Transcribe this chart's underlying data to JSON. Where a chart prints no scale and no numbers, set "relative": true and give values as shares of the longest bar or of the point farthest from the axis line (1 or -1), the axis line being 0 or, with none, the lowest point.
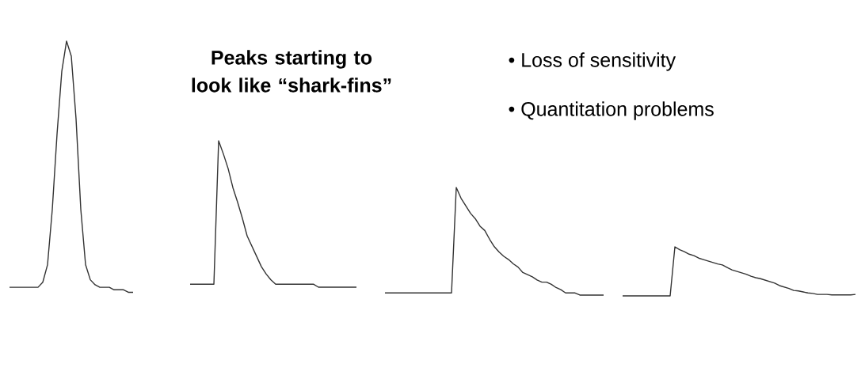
{
  "chart_data": [
    {
      "type": "line",
      "relative": true,
      "categories": [
        null,
        null,
        null,
        null,
        null,
        null,
        null,
        null,
        null,
        null,
        null,
        null,
        null,
        null,
        null,
        null,
        null,
        null,
        null,
        null,
        null,
        null,
        null,
        null,
        null,
        null,
        null
      ],
      "series": [
        {
          "color": "#333333",
          "values": [
            0.02,
            0.02,
            0.02,
            0.02,
            0.02,
            0.02,
            0.02,
            0.04,
            0.11,
            0.33,
            0.63,
            0.88,
            1.0,
            0.94,
            0.69,
            0.33,
            0.11,
            0.05,
            0.03,
            0.02,
            0.02,
            0.02,
            0.01,
            0.01,
            0.01,
            0,
            0
          ]
        }
      ]
    },
    {
      "type": "line",
      "relative": true,
      "title": "Peaks starting to look like “shark-fins”",
      "categories": [
        null,
        null,
        null,
        null,
        null,
        null,
        null,
        null,
        null,
        null,
        null,
        null,
        null,
        null,
        null,
        null,
        null,
        null,
        null,
        null,
        null,
        null,
        null,
        null,
        null,
        null,
        null,
        null,
        null,
        null,
        null,
        null,
        null,
        null,
        null,
        null
      ],
      "series": [
        {
          "color": "#333333",
          "values": [
            0.02,
            0.02,
            0.02,
            0.02,
            0.02,
            0.02,
            1.0,
            0.91,
            0.81,
            0.68,
            0.58,
            0.47,
            0.35,
            0.28,
            0.21,
            0.14,
            0.09,
            0.05,
            0.02,
            0.02,
            0.02,
            0.02,
            0.02,
            0.02,
            0.02,
            0.02,
            0.02,
            0,
            0,
            0,
            0,
            0,
            0,
            0,
            0,
            0
          ]
        }
      ]
    },
    {
      "type": "line",
      "relative": true,
      "annotations": [
        "• Loss of sensitivity",
        "• Quantitation problems"
      ],
      "categories": [
        null,
        null,
        null,
        null,
        null,
        null,
        null,
        null,
        null,
        null,
        null,
        null,
        null,
        null,
        null,
        null,
        null,
        null,
        null,
        null,
        null,
        null,
        null,
        null,
        null,
        null,
        null,
        null,
        null,
        null,
        null,
        null,
        null,
        null,
        null,
        null,
        null,
        null,
        null,
        null,
        null,
        null,
        null,
        null,
        null,
        null,
        null
      ],
      "series": [
        {
          "color": "#333333",
          "values": [
            0.02,
            0.02,
            0.02,
            0.02,
            0.02,
            0.02,
            0.02,
            0.02,
            0.02,
            0.02,
            0.02,
            0.02,
            0.02,
            0.02,
            0.02,
            1.0,
            0.9,
            0.83,
            0.76,
            0.71,
            0.64,
            0.6,
            0.52,
            0.45,
            0.4,
            0.36,
            0.33,
            0.29,
            0.26,
            0.21,
            0.19,
            0.17,
            0.14,
            0.12,
            0.12,
            0.1,
            0.07,
            0.05,
            0.02,
            0.02,
            0.02,
            0,
            0,
            0,
            0,
            0,
            0
          ]
        }
      ]
    },
    {
      "type": "line",
      "relative": true,
      "categories": [
        null,
        null,
        null,
        null,
        null,
        null,
        null,
        null,
        null,
        null,
        null,
        null,
        null,
        null,
        null,
        null,
        null,
        null,
        null,
        null,
        null,
        null,
        null,
        null,
        null,
        null,
        null,
        null,
        null,
        null,
        null,
        null,
        null,
        null,
        null,
        null,
        null,
        null,
        null,
        null,
        null,
        null,
        null,
        null,
        null,
        null,
        null,
        null,
        null,
        null
      ],
      "series": [
        {
          "color": "#333333",
          "values": [
            0,
            0,
            0,
            0,
            0,
            0,
            0,
            0,
            0,
            0,
            0,
            1.0,
            0.94,
            0.9,
            0.85,
            0.82,
            0.77,
            0.74,
            0.71,
            0.68,
            0.65,
            0.63,
            0.58,
            0.53,
            0.5,
            0.47,
            0.44,
            0.4,
            0.37,
            0.35,
            0.32,
            0.29,
            0.26,
            0.21,
            0.18,
            0.15,
            0.11,
            0.1,
            0.08,
            0.06,
            0.05,
            0.03,
            0.03,
            0.03,
            0.02,
            0.02,
            0.02,
            0.02,
            0.02,
            0.03
          ]
        }
      ]
    }
  ]
}
